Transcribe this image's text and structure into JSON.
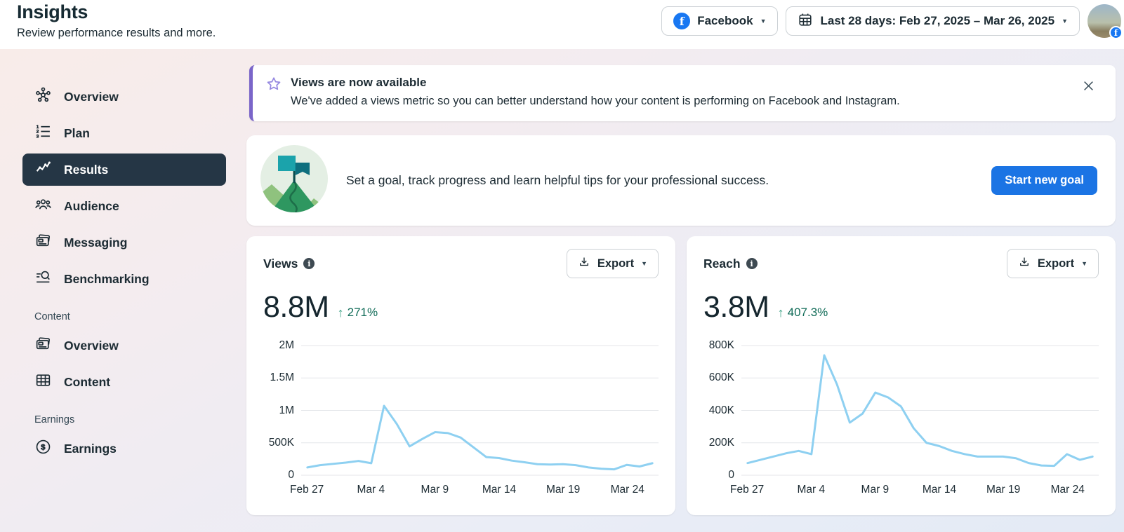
{
  "header": {
    "title": "Insights",
    "subtitle": "Review performance results and more.",
    "platform_button": {
      "label": "Facebook",
      "icon": "facebook-icon"
    },
    "date_button": {
      "label": "Last 28 days: Feb 27, 2025 – Mar 26, 2025",
      "icon": "calendar-icon"
    },
    "avatar": {
      "badge_icon": "facebook-badge-icon"
    }
  },
  "sidebar": {
    "items": [
      {
        "label": "Overview",
        "icon": "network-icon",
        "selected": false
      },
      {
        "label": "Plan",
        "icon": "ordered-list-icon",
        "selected": false
      },
      {
        "label": "Results",
        "icon": "trend-line-icon",
        "selected": true
      },
      {
        "label": "Audience",
        "icon": "people-icon",
        "selected": false
      },
      {
        "label": "Messaging",
        "icon": "message-cards-icon",
        "selected": false
      },
      {
        "label": "Benchmarking",
        "icon": "search-list-icon",
        "selected": false
      }
    ],
    "content_section": {
      "label": "Content",
      "items": [
        {
          "label": "Overview",
          "icon": "message-cards-icon"
        },
        {
          "label": "Content",
          "icon": "table-icon"
        }
      ]
    },
    "earnings_section": {
      "label": "Earnings",
      "items": [
        {
          "label": "Earnings",
          "icon": "dollar-circle-icon"
        }
      ]
    }
  },
  "banner": {
    "icon": "star-icon",
    "title": "Views are now available",
    "description": "We've added a views metric so you can better understand how your content is performing on Facebook and Instagram.",
    "close_icon": "close-icon"
  },
  "goal_card": {
    "illustration": "flag-on-mountain-illustration",
    "text": "Set a goal, track progress and learn helpful tips for your professional success.",
    "button_label": "Start new goal"
  },
  "metric_cards": [
    {
      "title": "Views",
      "info_icon": "info-icon",
      "export_label": "Export",
      "export_icon": "download-icon",
      "value": "8.8M",
      "delta_direction": "up",
      "delta": "271%"
    },
    {
      "title": "Reach",
      "info_icon": "info-icon",
      "export_label": "Export",
      "export_icon": "download-icon",
      "value": "3.8M",
      "delta_direction": "up",
      "delta": "407.3%"
    }
  ],
  "chart_data": [
    {
      "type": "line",
      "title": "Views",
      "color": "#8ed0f1",
      "grid": true,
      "legend": "none",
      "ymax": 2000000,
      "ylim": [
        0,
        2000000
      ],
      "yticks": [
        "0",
        "500K",
        "1M",
        "1.5M",
        "2M"
      ],
      "x": [
        "Feb 27",
        "Feb 28",
        "Mar 1",
        "Mar 2",
        "Mar 3",
        "Mar 4",
        "Mar 5",
        "Mar 6",
        "Mar 7",
        "Mar 8",
        "Mar 9",
        "Mar 10",
        "Mar 11",
        "Mar 12",
        "Mar 13",
        "Mar 14",
        "Mar 15",
        "Mar 16",
        "Mar 17",
        "Mar 18",
        "Mar 19",
        "Mar 20",
        "Mar 21",
        "Mar 22",
        "Mar 23",
        "Mar 24",
        "Mar 25",
        "Mar 26"
      ],
      "values": [
        120000,
        155000,
        175000,
        195000,
        220000,
        185000,
        1070000,
        790000,
        445000,
        560000,
        665000,
        650000,
        580000,
        430000,
        280000,
        265000,
        225000,
        200000,
        170000,
        165000,
        170000,
        155000,
        120000,
        100000,
        90000,
        160000,
        135000,
        185000
      ],
      "xtick_indices": [
        0,
        5,
        10,
        15,
        20,
        25
      ],
      "xtick_labels": [
        "Feb 27",
        "Mar 4",
        "Mar 9",
        "Mar 14",
        "Mar 19",
        "Mar 24"
      ]
    },
    {
      "type": "line",
      "title": "Reach",
      "color": "#8ed0f1",
      "grid": true,
      "legend": "none",
      "ymax": 800000,
      "ylim": [
        0,
        800000
      ],
      "yticks": [
        "0",
        "200K",
        "400K",
        "600K",
        "800K"
      ],
      "x": [
        "Feb 27",
        "Feb 28",
        "Mar 1",
        "Mar 2",
        "Mar 3",
        "Mar 4",
        "Mar 5",
        "Mar 6",
        "Mar 7",
        "Mar 8",
        "Mar 9",
        "Mar 10",
        "Mar 11",
        "Mar 12",
        "Mar 13",
        "Mar 14",
        "Mar 15",
        "Mar 16",
        "Mar 17",
        "Mar 18",
        "Mar 19",
        "Mar 20",
        "Mar 21",
        "Mar 22",
        "Mar 23",
        "Mar 24",
        "Mar 25",
        "Mar 26"
      ],
      "values": [
        75000,
        95000,
        115000,
        135000,
        150000,
        130000,
        740000,
        560000,
        325000,
        380000,
        510000,
        480000,
        425000,
        290000,
        200000,
        180000,
        150000,
        130000,
        115000,
        115000,
        115000,
        105000,
        75000,
        60000,
        58000,
        130000,
        95000,
        115000
      ],
      "xtick_indices": [
        0,
        5,
        10,
        15,
        20,
        25
      ],
      "xtick_labels": [
        "Feb 27",
        "Mar 4",
        "Mar 9",
        "Mar 14",
        "Mar 19",
        "Mar 24"
      ]
    }
  ],
  "colors": {
    "accent_blue": "#1b74e4",
    "facebook_blue": "#1877f2",
    "series_line_blue": "#8ed0f1",
    "positive_delta_green": "#0e6a56",
    "delta_arrow_green": "#3ba183",
    "banner_purple": "#7a65c9",
    "selected_nav_bg": "#253645"
  }
}
